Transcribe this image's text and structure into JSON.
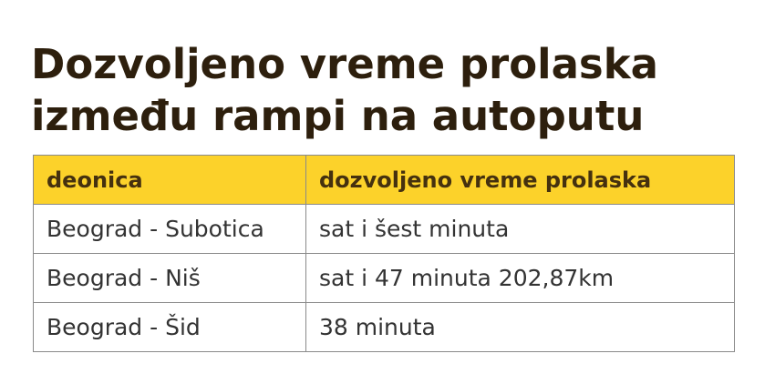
{
  "title_lines": [
    "Dozvoljeno vreme prolaska",
    "između rampi na autoputu"
  ],
  "table": {
    "headers": [
      "deonica",
      "dozvoljeno vreme prolaska"
    ],
    "rows": [
      [
        "Beograd - Subotica",
        "sat i šest minuta"
      ],
      [
        "Beograd - Niš",
        "sat i 47 minuta 202,87km"
      ],
      [
        "Beograd - Šid",
        "38 minuta"
      ]
    ],
    "header_color": "#fcd22a"
  }
}
